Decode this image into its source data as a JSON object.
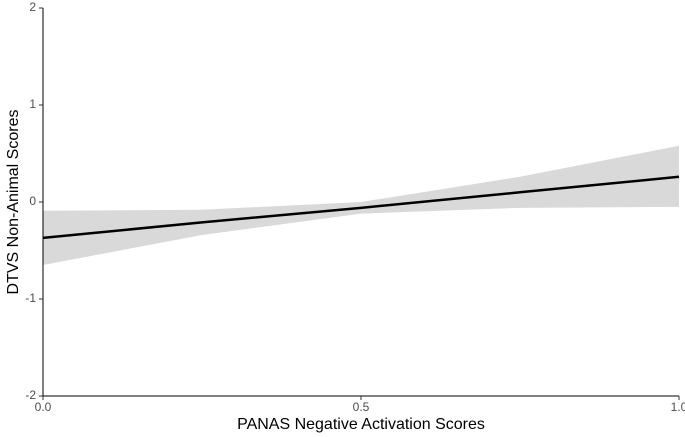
{
  "chart_data": {
    "type": "line",
    "x_label": "PANAS Negative Activation Scores",
    "y_label": "DTVS Non-Animal Scores",
    "x": [
      0,
      0.25,
      0.5,
      0.75,
      1
    ],
    "series": [
      {
        "color": "#000000",
        "band_color": "#d9d9d9",
        "values": [
          -0.37,
          -0.21,
          -0.06,
          0.1,
          0.26
        ],
        "upper": [
          -0.09,
          -0.08,
          0.0,
          0.26,
          0.58
        ],
        "lower": [
          -0.65,
          -0.34,
          -0.12,
          -0.06,
          -0.05
        ]
      }
    ],
    "xlim": [
      0,
      1
    ],
    "ylim": [
      -2,
      2
    ],
    "xticks": [
      {
        "value": 0,
        "label": "0.0"
      },
      {
        "value": 0.5,
        "label": "0.5"
      },
      {
        "value": 1,
        "label": "1.0"
      }
    ],
    "yticks": [
      -2,
      -1,
      0,
      1,
      2
    ],
    "grid": false
  }
}
